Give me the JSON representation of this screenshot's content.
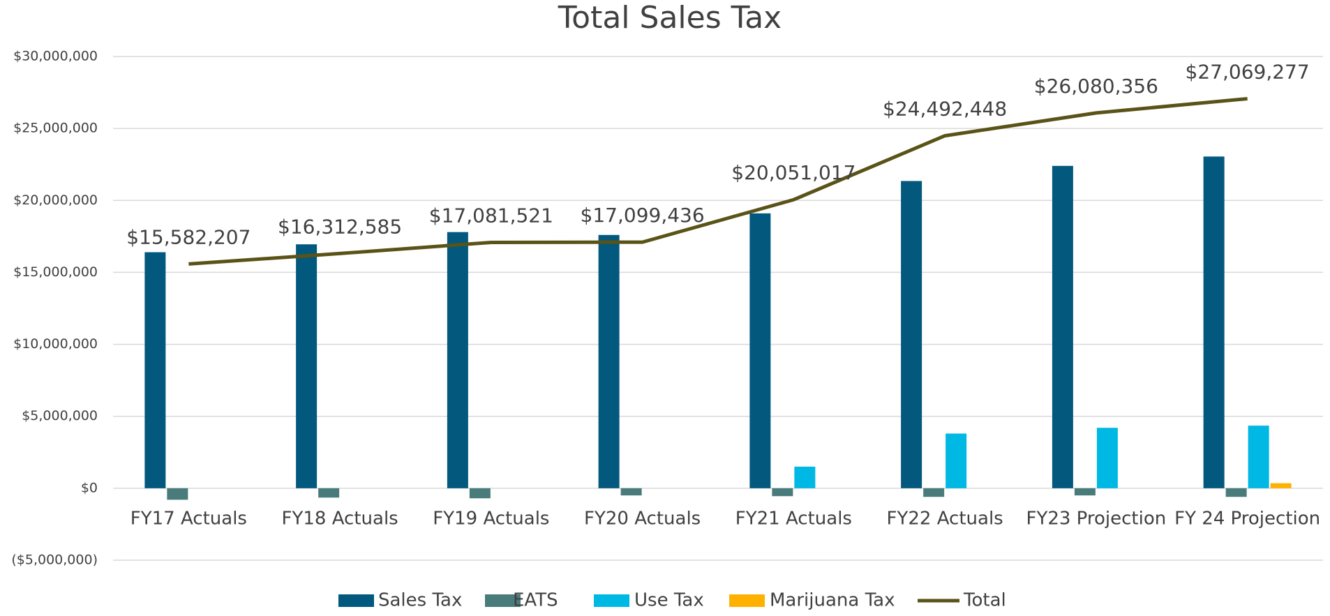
{
  "chart_data": {
    "type": "bar",
    "title": "Total Sales Tax",
    "categories": [
      "FY17 Actuals",
      "FY18 Actuals",
      "FY19 Actuals",
      "FY20 Actuals",
      "FY21 Actuals",
      "FY22 Actuals",
      "FY23 Projection",
      "FY 24 Projection"
    ],
    "series": [
      {
        "name": "Sales Tax",
        "color": "#03587e",
        "type": "bar",
        "values": [
          16400000,
          16950000,
          17800000,
          17600000,
          19100000,
          21350000,
          22400000,
          23050000
        ]
      },
      {
        "name": "EATS",
        "color": "#4a7b7b",
        "type": "bar",
        "values": [
          -800000,
          -650000,
          -700000,
          -500000,
          -550000,
          -600000,
          -500000,
          -600000
        ]
      },
      {
        "name": "Use Tax",
        "color": "#00b8e4",
        "type": "bar",
        "values": [
          0,
          0,
          0,
          0,
          1500000,
          3800000,
          4200000,
          4350000
        ]
      },
      {
        "name": "Marijuana Tax",
        "color": "#ffb100",
        "type": "bar",
        "values": [
          0,
          0,
          0,
          0,
          0,
          0,
          0,
          350000
        ]
      },
      {
        "name": "Total",
        "color": "#5a5318",
        "type": "line",
        "values": [
          15582207,
          16312585,
          17081521,
          17099436,
          20051017,
          24492448,
          26080356,
          27069277
        ],
        "value_labels": [
          "$15,582,207",
          "$16,312,585",
          "$17,081,521",
          "$17,099,436",
          "$20,051,017",
          "$24,492,448",
          "$26,080,356",
          "$27,069,277"
        ]
      }
    ],
    "ylim": [
      -5000000,
      30000000
    ],
    "yticks": [
      {
        "value": -5000000,
        "label": "($5,000,000)"
      },
      {
        "value": 0,
        "label": "$0"
      },
      {
        "value": 5000000,
        "label": "$5,000,000"
      },
      {
        "value": 10000000,
        "label": "$10,000,000"
      },
      {
        "value": 15000000,
        "label": "$15,000,000"
      },
      {
        "value": 20000000,
        "label": "$20,000,000"
      },
      {
        "value": 25000000,
        "label": "$25,000,000"
      },
      {
        "value": 30000000,
        "label": "$30,000,000"
      }
    ],
    "grid": true,
    "legend": "bottom"
  }
}
